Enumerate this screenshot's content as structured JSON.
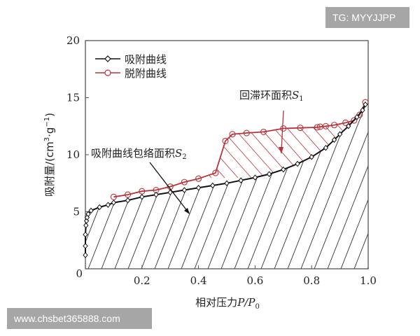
{
  "watermarks": {
    "top_right": "TG: MYYJJPP",
    "bottom_left": "www.chsbet365888.com"
  },
  "colors": {
    "adsorption": "#111111",
    "desorption": "#b5343a",
    "hatch": "#333333",
    "axis": "#555555"
  },
  "chart_data": {
    "type": "line",
    "title": "",
    "xlabel": "相对压力P/P0",
    "xlabel_cn": "相对压力",
    "xlabel_var": "P/P",
    "xlabel_sub": "0",
    "ylabel": "吸附量/(cm3·g-1)",
    "ylabel_cn": "吸附量/(cm",
    "ylabel_sup1": "3",
    "ylabel_mid": "·g",
    "ylabel_sup2": "−1",
    "ylabel_end": ")",
    "xlim": [
      0,
      1.0
    ],
    "ylim": [
      0,
      20
    ],
    "xticks": [
      "0.2",
      "0.4",
      "0.6",
      "0.8",
      "1.0"
    ],
    "xtick_values": [
      0.2,
      0.4,
      0.6,
      0.8,
      1.0
    ],
    "yticks": [
      "0",
      "5",
      "10",
      "15",
      "20"
    ],
    "ytick_values": [
      0,
      5,
      10,
      15,
      20
    ],
    "grid": false,
    "legend_position": "upper-left",
    "legend": [
      "吸附曲线",
      "脱附曲线"
    ],
    "series": [
      {
        "name": "吸附曲线",
        "marker": "diamond",
        "color": "#111111",
        "x": [
          0.0,
          0.0,
          0.0,
          0.002,
          0.004,
          0.006,
          0.01,
          0.02,
          0.05,
          0.08,
          0.1,
          0.15,
          0.2,
          0.25,
          0.3,
          0.35,
          0.4,
          0.45,
          0.5,
          0.55,
          0.6,
          0.65,
          0.7,
          0.75,
          0.8,
          0.85,
          0.88,
          0.9,
          0.93,
          0.96,
          0.98,
          0.99
        ],
        "y": [
          1.2,
          2.0,
          3.0,
          3.8,
          4.2,
          4.5,
          4.8,
          5.1,
          5.4,
          5.6,
          5.8,
          6.0,
          6.3,
          6.5,
          6.7,
          6.9,
          7.1,
          7.3,
          7.5,
          7.75,
          8.0,
          8.3,
          8.7,
          9.2,
          9.8,
          10.6,
          11.3,
          11.8,
          12.5,
          13.3,
          13.9,
          14.4
        ]
      },
      {
        "name": "脱附曲线",
        "marker": "circle",
        "color": "#b5343a",
        "x": [
          0.99,
          0.97,
          0.95,
          0.92,
          0.88,
          0.85,
          0.83,
          0.82,
          0.76,
          0.7,
          0.63,
          0.57,
          0.52,
          0.495,
          0.46,
          0.4,
          0.35,
          0.3,
          0.25,
          0.2,
          0.15,
          0.1
        ],
        "y": [
          14.6,
          13.5,
          13.0,
          12.8,
          12.6,
          12.5,
          12.45,
          12.4,
          12.35,
          12.3,
          12.0,
          11.9,
          11.8,
          11.2,
          8.4,
          7.9,
          7.6,
          7.2,
          6.9,
          6.8,
          6.5,
          6.3
        ]
      }
    ],
    "annotations": [
      {
        "text": "回滞环面积",
        "var": "S",
        "sub": "1",
        "meaning": "hysteresis loop area",
        "arrow_to": [
          0.69,
          9.8
        ]
      },
      {
        "text": "吸附曲线包络面积",
        "var": "S",
        "sub": "2",
        "meaning": "area under adsorption curve",
        "arrow_to": [
          0.39,
          5.1
        ]
      }
    ]
  }
}
